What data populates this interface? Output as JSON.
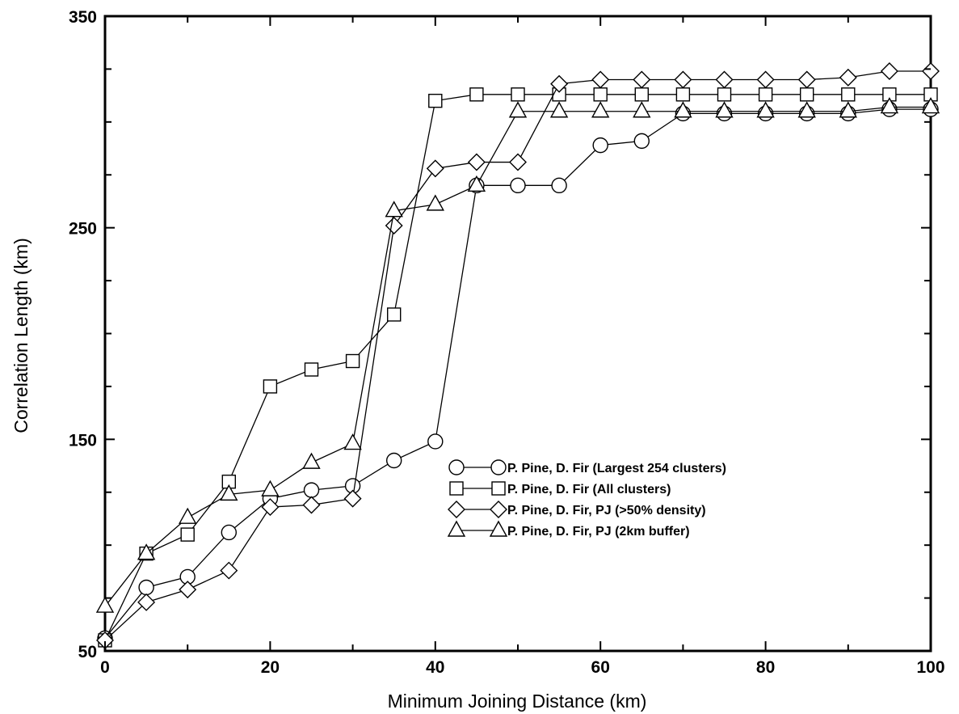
{
  "chart_data": {
    "type": "line",
    "xlabel": "Minimum Joining Distance (km)",
    "ylabel": "Correlation Length (km)",
    "xlim": [
      0,
      100
    ],
    "ylim": [
      50,
      350
    ],
    "xticks": [
      0,
      20,
      40,
      60,
      80,
      100
    ],
    "yticks": [
      50,
      150,
      250,
      350
    ],
    "grid": false,
    "legend_position": "center-right",
    "x": [
      0,
      5,
      10,
      15,
      20,
      25,
      30,
      35,
      40,
      45,
      50,
      55,
      60,
      65,
      70,
      75,
      80,
      85,
      90,
      95,
      100
    ],
    "series": [
      {
        "name": "P. Pine, D. Fir (Largest 254 clusters)",
        "marker": "circle",
        "values": [
          56,
          80,
          85,
          106,
          122,
          126,
          128,
          140,
          149,
          270,
          270,
          270,
          289,
          291,
          304,
          304,
          304,
          304,
          304,
          306,
          306
        ]
      },
      {
        "name": "P. Pine, D. Fir (All clusters)",
        "marker": "square",
        "values": [
          55,
          96,
          105,
          130,
          175,
          183,
          187,
          209,
          310,
          313,
          313,
          313,
          313,
          313,
          313,
          313,
          313,
          313,
          313,
          313,
          313
        ]
      },
      {
        "name": "P. Pine, D. Fir, PJ (>50% density)",
        "marker": "diamond",
        "values": [
          55,
          73,
          79,
          88,
          118,
          119,
          122,
          251,
          278,
          281,
          281,
          318,
          320,
          320,
          320,
          320,
          320,
          320,
          321,
          324,
          324
        ]
      },
      {
        "name": "P. Pine, D. Fir, PJ (2km buffer)",
        "marker": "triangle",
        "values": [
          71,
          96,
          113,
          124,
          126,
          139,
          148,
          258,
          261,
          270,
          305,
          305,
          305,
          305,
          305,
          305,
          305,
          305,
          305,
          307,
          307
        ]
      }
    ]
  }
}
